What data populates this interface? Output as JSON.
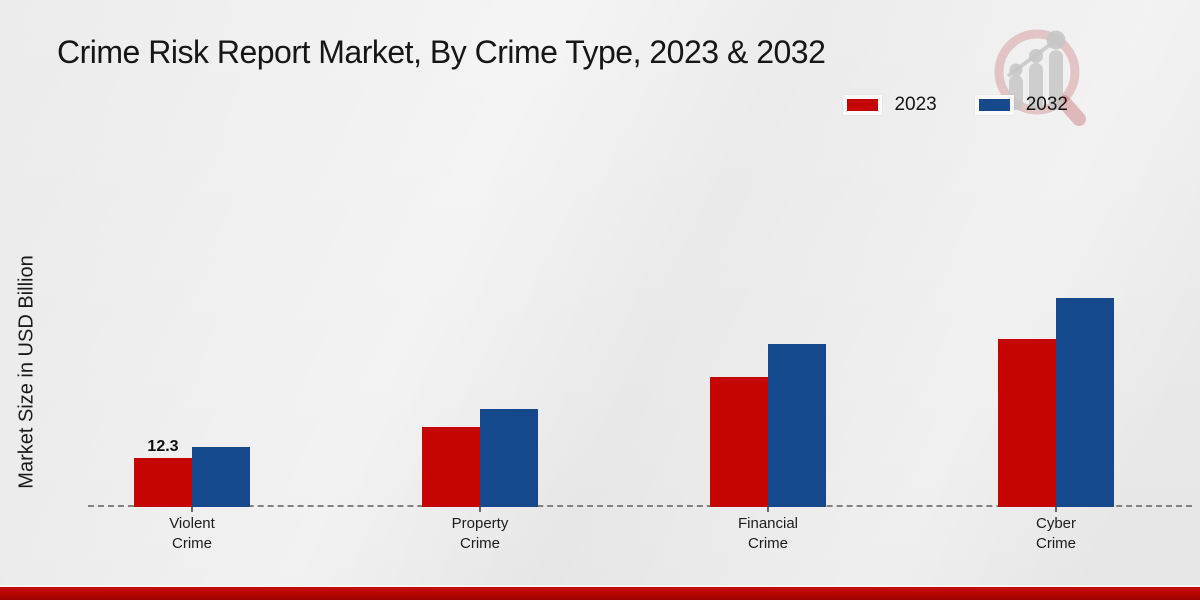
{
  "title": "Crime Risk Report Market, By Crime Type, 2023 & 2032",
  "y_axis_label": "Market Size in USD Billion",
  "legend": {
    "items": [
      {
        "label": "2023",
        "color": "#c40502"
      },
      {
        "label": "2032",
        "color": "#15498c"
      }
    ]
  },
  "colors": {
    "series_2023": "#c40502",
    "series_2032": "#15498c",
    "background": "#e9e9e9",
    "baseline_dash": "#828282",
    "bottom_strip_red": "#b30501",
    "text": "#161616"
  },
  "chart_data": {
    "type": "bar",
    "title": "Crime Risk Report Market, By Crime Type, 2023 & 2032",
    "categories": [
      "Violent Crime",
      "Property Crime",
      "Financial Crime",
      "Cyber Crime"
    ],
    "series": [
      {
        "name": "2023",
        "color": "#c40502",
        "values": [
          12.3,
          20.1,
          32.6,
          42.2
        ]
      },
      {
        "name": "2032",
        "color": "#15498c",
        "values": [
          15.1,
          24.6,
          40.9,
          52.5
        ]
      }
    ],
    "data_labels": [
      {
        "series_index": 0,
        "category_index": 0,
        "text": "12.3"
      }
    ],
    "xlabel": "",
    "ylabel": "Market Size in USD Billion",
    "ylim": [
      0,
      60
    ],
    "grid": "off",
    "baseline_style": "dashed",
    "legend_position": "top-right"
  },
  "branding": {
    "watermark": "magnifier-trend-chart-logo"
  }
}
